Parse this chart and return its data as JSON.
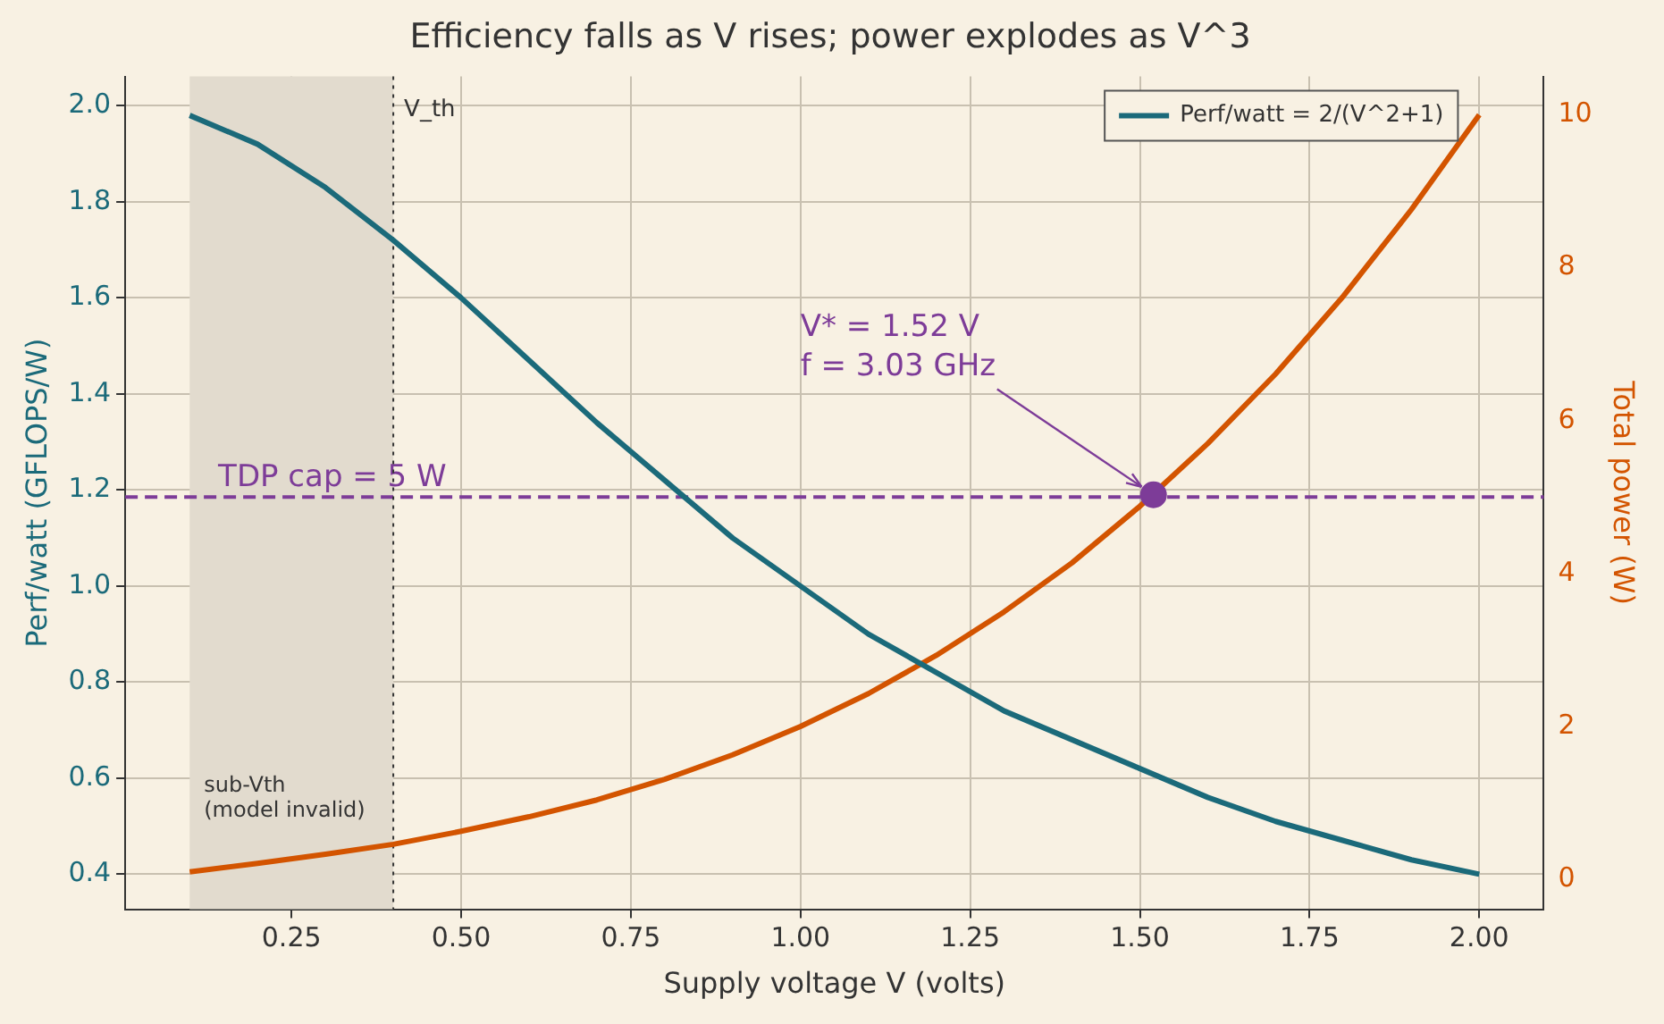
{
  "chart_data": {
    "type": "line",
    "title": "Efficiency falls as V rises; power explodes as V^3",
    "xlabel": "Supply voltage V (volts)",
    "ylabel": "Perf/watt (GFLOPS/W)",
    "y2label": "Total power (W)",
    "x": [
      0.1,
      0.2,
      0.3,
      0.4,
      0.5,
      0.6,
      0.7,
      0.8,
      0.9,
      1.0,
      1.1,
      1.2,
      1.3,
      1.4,
      1.5,
      1.6,
      1.7,
      1.8,
      1.9,
      2.0
    ],
    "series": [
      {
        "name": "Perf/watt = 2/(V^2+1)",
        "color": "#1b6a7a",
        "values": [
          1.98,
          1.92,
          1.83,
          1.72,
          1.6,
          1.47,
          1.34,
          1.22,
          1.1,
          1.0,
          0.9,
          0.82,
          0.74,
          0.68,
          0.62,
          0.56,
          0.51,
          0.47,
          0.43,
          0.4
        ]
      },
      {
        "color": "#d35400",
        "axis": "y2",
        "values": [
          0.1,
          0.21,
          0.33,
          0.46,
          0.63,
          0.82,
          1.04,
          1.31,
          1.63,
          2.0,
          2.43,
          2.93,
          3.5,
          4.14,
          4.88,
          5.7,
          6.61,
          7.63,
          8.76,
          10.0
        ]
      },
      {
        "type": "scatter",
        "marker": "circle",
        "color": "#7d3c98",
        "axis": "y2",
        "x": [
          1.52
        ],
        "values": [
          5.03
        ]
      }
    ],
    "xlim": [
      0.005,
      2.095
    ],
    "xticks": [
      {
        "value": 0.25,
        "label": "0.25"
      },
      {
        "value": 0.5,
        "label": "0.50"
      },
      {
        "value": 0.75,
        "label": "0.75"
      },
      {
        "value": 1.0,
        "label": "1.00"
      },
      {
        "value": 1.25,
        "label": "1.25"
      },
      {
        "value": 1.5,
        "label": "1.50"
      },
      {
        "value": 1.75,
        "label": "1.75"
      },
      {
        "value": 2.0,
        "label": "2.00"
      }
    ],
    "ylim": [
      0.327,
      2.061
    ],
    "yticks": [
      0.4,
      0.6,
      0.8,
      {
        "value": 1.0,
        "label": "1.0"
      },
      1.2,
      1.4,
      1.6,
      1.8,
      {
        "value": 2.0,
        "label": "2.0"
      }
    ],
    "y2lim": [
      -0.39,
      10.5
    ],
    "y2ticks": [
      0,
      2,
      4,
      6,
      8,
      10
    ],
    "ref_lines": [
      {
        "axis": "y2",
        "value": 5,
        "label": "TDP cap = 5 W",
        "color": "#7d3c98",
        "line_style": "dashed"
      },
      {
        "axis": "x",
        "value": 0.4,
        "label": "V_th",
        "color": "#333333",
        "line_style": "dotted"
      }
    ],
    "bands": [
      {
        "axis": "x",
        "from": 0.1,
        "to": 0.4,
        "label": "sub-Vth\n(model invalid)",
        "color": "#e2dbce"
      }
    ],
    "annotations": [
      {
        "text": "V* = 1.52 V\nf = 3.03 GHz",
        "x": 1.52,
        "y": 1.19
      }
    ],
    "marker": "none",
    "grid": true,
    "legend": "top right",
    "line_style": "solid"
  }
}
